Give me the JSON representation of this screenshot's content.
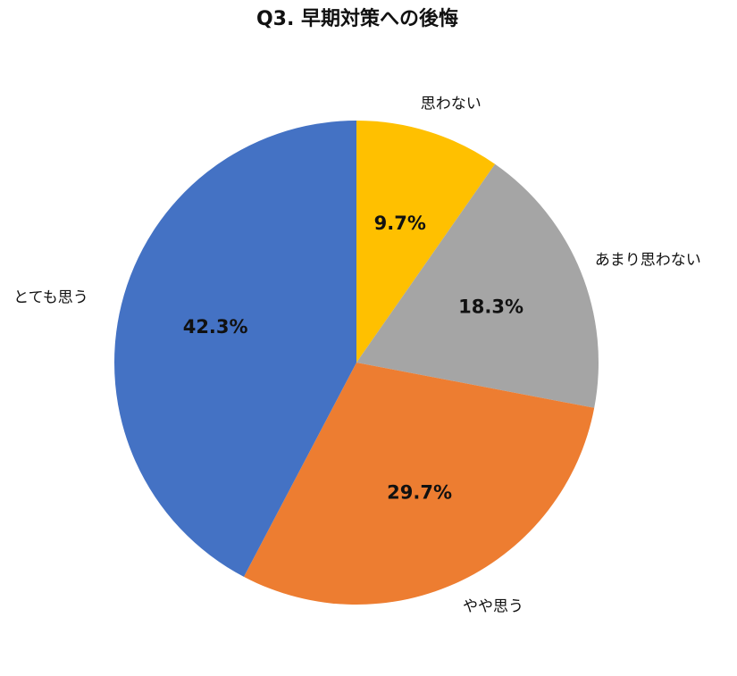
{
  "chart_data": {
    "type": "pie",
    "title": "Q3. 早期対策への後悔",
    "categories": [
      "思わない",
      "あまり思わない",
      "やや思う",
      "とても思う"
    ],
    "values": [
      9.7,
      18.3,
      29.7,
      42.3
    ],
    "value_labels": [
      "9.7%",
      "18.3%",
      "29.7%",
      "42.3%"
    ],
    "colors": [
      "#ffc000",
      "#a5a5a5",
      "#ed7d31",
      "#4472c4"
    ]
  }
}
